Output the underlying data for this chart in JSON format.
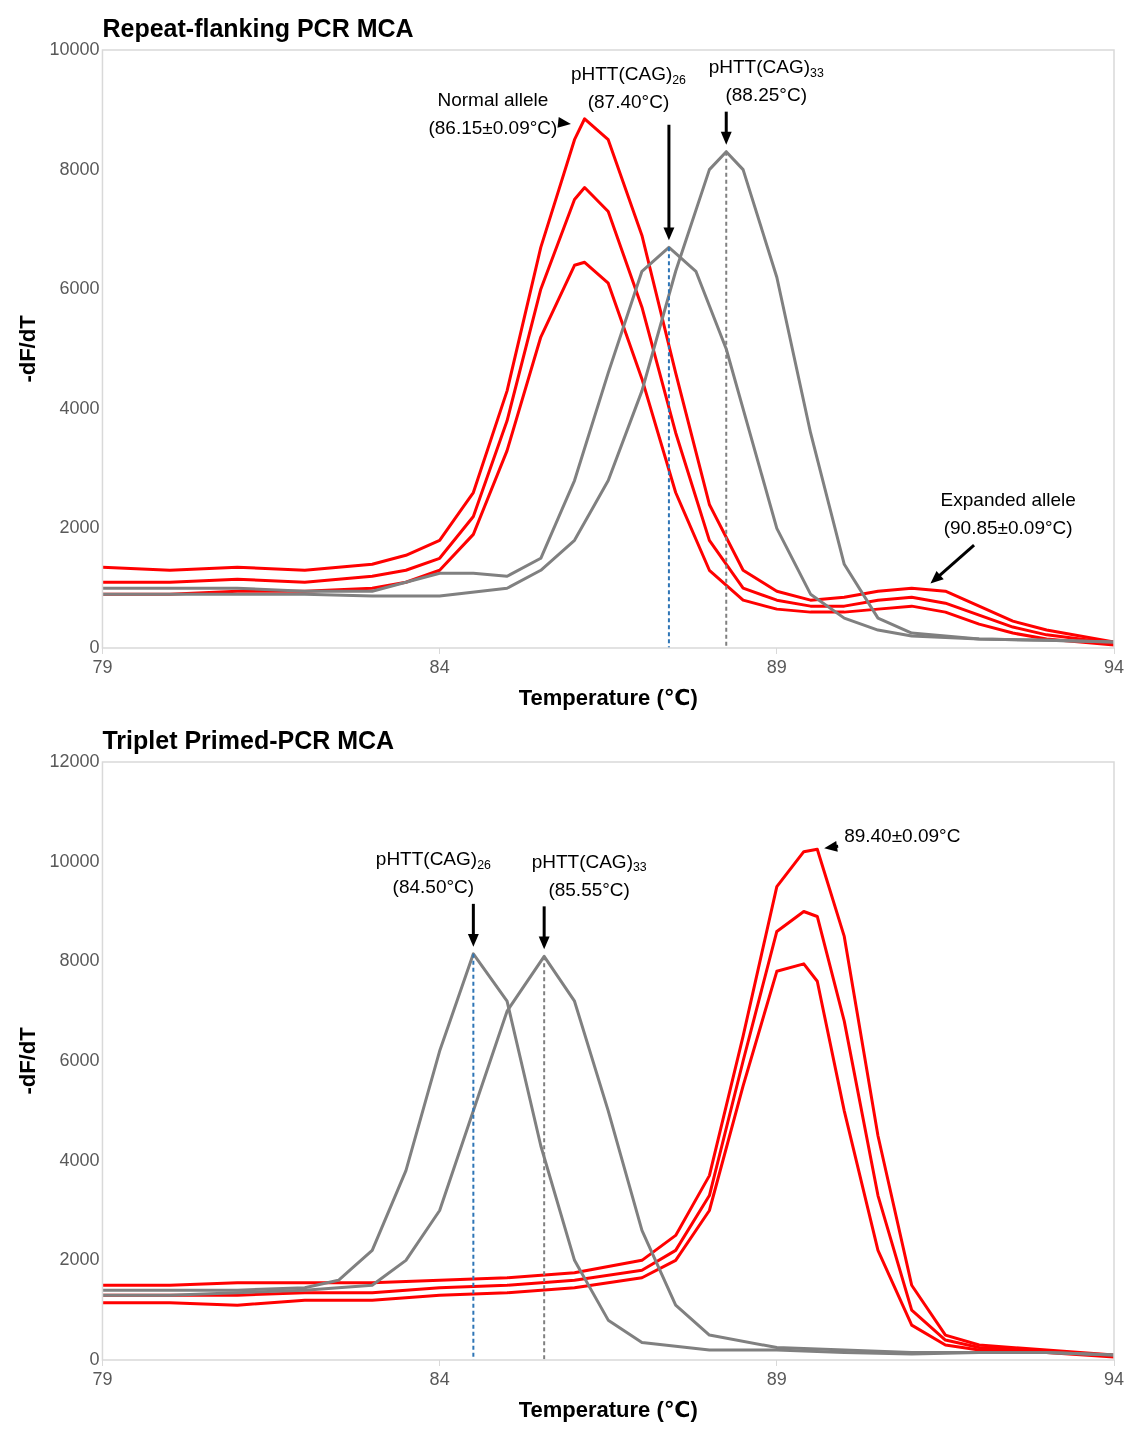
{
  "chart_data": [
    {
      "type": "line",
      "title": "Repeat-flanking PCR MCA",
      "xlabel": "Temperature (℃)",
      "ylabel": "-dF/dT",
      "xlim": [
        79,
        94
      ],
      "xticks": [
        79,
        84,
        89,
        94
      ],
      "ylim": [
        0,
        10000
      ],
      "yticks": [
        0,
        2000,
        4000,
        6000,
        8000,
        10000
      ],
      "marker": "none",
      "legend": false,
      "grid": false,
      "series": [
        {
          "color": "#ff0000",
          "x": [
            79,
            80,
            81,
            82,
            83,
            83.5,
            84,
            84.5,
            85,
            85.5,
            86,
            86.15,
            86.5,
            87,
            87.5,
            88,
            88.5,
            89,
            89.5,
            90,
            90.5,
            91,
            91.5,
            92,
            92.5,
            93,
            94
          ],
          "values": [
            1350,
            1300,
            1350,
            1300,
            1400,
            1550,
            1800,
            2600,
            4300,
            6700,
            8500,
            8850,
            8500,
            6900,
            4600,
            2400,
            1300,
            950,
            800,
            850,
            950,
            1000,
            950,
            700,
            450,
            300,
            100
          ]
        },
        {
          "color": "#ff0000",
          "x": [
            79,
            80,
            81,
            82,
            83,
            83.5,
            84,
            84.5,
            85,
            85.5,
            86,
            86.15,
            86.5,
            87,
            87.5,
            88,
            88.5,
            89,
            89.5,
            90,
            90.5,
            91,
            91.5,
            92,
            92.5,
            93,
            94
          ],
          "values": [
            1100,
            1100,
            1150,
            1100,
            1200,
            1300,
            1500,
            2200,
            3800,
            6000,
            7500,
            7700,
            7300,
            5700,
            3600,
            1800,
            1000,
            800,
            700,
            700,
            800,
            850,
            750,
            550,
            350,
            220,
            80
          ]
        },
        {
          "color": "#ff0000",
          "x": [
            79,
            80,
            81,
            82,
            83,
            83.5,
            84,
            84.5,
            85,
            85.5,
            86,
            86.15,
            86.5,
            87,
            87.5,
            88,
            88.5,
            89,
            89.5,
            90,
            90.5,
            91,
            91.5,
            92,
            92.5,
            93,
            94
          ],
          "values": [
            900,
            900,
            950,
            950,
            1000,
            1100,
            1300,
            1900,
            3300,
            5200,
            6400,
            6450,
            6100,
            4500,
            2600,
            1300,
            800,
            650,
            600,
            600,
            650,
            700,
            600,
            400,
            250,
            150,
            50
          ]
        },
        {
          "color": "#808080",
          "x": [
            79,
            80,
            81,
            82,
            83,
            84,
            84.5,
            85,
            85.5,
            86,
            86.5,
            87,
            87.4,
            87.8,
            88.25,
            88.5,
            89,
            89.5,
            90,
            90.5,
            91,
            92,
            93,
            94
          ],
          "values": [
            1000,
            1000,
            1000,
            950,
            950,
            1250,
            1250,
            1200,
            1500,
            2800,
            4600,
            6300,
            6700,
            6300,
            5000,
            4000,
            2000,
            900,
            500,
            300,
            200,
            150,
            130,
            100
          ]
        },
        {
          "color": "#808080",
          "x": [
            79,
            80,
            81,
            82,
            83,
            84,
            85,
            85.5,
            86,
            86.5,
            87,
            87.5,
            88,
            88.25,
            88.5,
            89,
            89.5,
            90,
            90.5,
            91,
            92,
            93,
            94
          ],
          "values": [
            900,
            900,
            900,
            900,
            870,
            870,
            1000,
            1300,
            1800,
            2800,
            4300,
            6300,
            8000,
            8300,
            8000,
            6200,
            3600,
            1400,
            500,
            250,
            150,
            130,
            100
          ]
        },
        {
          "type": "line",
          "color": "#2e75b6",
          "line_style": "dashed",
          "x": [
            87.4,
            87.4
          ],
          "values": [
            6700,
            0
          ]
        },
        {
          "type": "line",
          "color": "#808080",
          "line_style": "dashed",
          "x": [
            88.25,
            88.25
          ],
          "values": [
            8300,
            0
          ]
        }
      ],
      "annotations": [
        {
          "text": "Normal allele\n(86.15±0.09°C)",
          "x": 86.05,
          "y": 8750
        },
        "pHTT(CAG)$_{26}$\n(87.40°C)",
        {
          "text": "pHTT(CAG)$_{33}$\n(88.25°C)",
          "x": 88.25,
          "y": 8300
        },
        {
          "text": "Expanded allele\n(90.85±0.09°C)",
          "x": 91.2,
          "y": 1000
        }
      ]
    },
    {
      "type": "line",
      "title": "Triplet Primed-PCR MCA",
      "xlabel": "Temperature (℃)",
      "ylabel": "-dF/dT",
      "xlim": [
        79,
        94
      ],
      "xticks": [
        79,
        84,
        89,
        94
      ],
      "ylim": [
        0,
        12000
      ],
      "yticks": [
        0,
        2000,
        4000,
        6000,
        8000,
        10000,
        12000
      ],
      "marker": "none",
      "legend": false,
      "grid": false,
      "series": [
        {
          "color": "#ff0000",
          "x": [
            79,
            80,
            81,
            82,
            83,
            84,
            85,
            86,
            87,
            87.5,
            88,
            88.5,
            89,
            89.4,
            89.6,
            90,
            90.5,
            91,
            91.5,
            92,
            93,
            94
          ],
          "values": [
            1500,
            1500,
            1550,
            1550,
            1550,
            1600,
            1650,
            1750,
            2000,
            2500,
            3700,
            6500,
            9500,
            10200,
            10250,
            8500,
            4500,
            1500,
            500,
            300,
            200,
            100
          ]
        },
        {
          "color": "#ff0000",
          "x": [
            79,
            80,
            81,
            82,
            83,
            84,
            85,
            86,
            87,
            87.5,
            88,
            88.5,
            89,
            89.4,
            89.6,
            90,
            90.5,
            91,
            91.5,
            92,
            93,
            94
          ],
          "values": [
            1300,
            1300,
            1300,
            1350,
            1350,
            1450,
            1500,
            1600,
            1800,
            2200,
            3300,
            6000,
            8600,
            9000,
            8900,
            6800,
            3300,
            1000,
            400,
            250,
            170,
            80
          ]
        },
        {
          "color": "#ff0000",
          "x": [
            79,
            80,
            81,
            82,
            83,
            84,
            85,
            86,
            87,
            87.5,
            88,
            88.5,
            89,
            89.4,
            89.6,
            90,
            90.5,
            91,
            91.5,
            92,
            93,
            94
          ],
          "values": [
            1150,
            1150,
            1100,
            1200,
            1200,
            1300,
            1350,
            1450,
            1650,
            2000,
            3000,
            5500,
            7800,
            7950,
            7600,
            5000,
            2200,
            700,
            300,
            200,
            150,
            60
          ]
        },
        {
          "color": "#808080",
          "x": [
            79,
            80,
            81,
            82,
            82.5,
            83,
            83.5,
            84,
            84.5,
            85,
            85.5,
            86,
            86.5,
            87,
            88,
            89,
            90,
            91,
            92,
            93,
            94
          ],
          "values": [
            1400,
            1400,
            1400,
            1450,
            1600,
            2200,
            3800,
            6200,
            8150,
            7200,
            4300,
            2000,
            800,
            350,
            200,
            200,
            150,
            120,
            150,
            150,
            100
          ]
        },
        {
          "color": "#808080",
          "x": [
            79,
            80,
            81,
            82,
            83,
            83.5,
            84,
            84.5,
            85,
            85.55,
            86,
            86.5,
            87,
            87.5,
            88,
            89,
            90,
            91,
            92,
            93,
            94
          ],
          "values": [
            1300,
            1300,
            1350,
            1400,
            1500,
            2000,
            3000,
            5000,
            7000,
            8100,
            7200,
            5000,
            2600,
            1100,
            500,
            250,
            200,
            150,
            150,
            150,
            100
          ]
        },
        {
          "type": "line",
          "color": "#2e75b6",
          "line_style": "dashed",
          "x": [
            84.5,
            84.5
          ],
          "values": [
            8150,
            0
          ]
        },
        {
          "type": "line",
          "color": "#808080",
          "line_style": "dashed",
          "x": [
            85.55,
            85.55
          ],
          "values": [
            8100,
            0
          ]
        }
      ],
      "annotations": [
        {
          "text": "89.40±0.09°C",
          "x": 89.6,
          "y": 10250
        },
        {
          "text": "pHTT(CAG)$_{26}$\n(84.50°C)",
          "x": 84.5,
          "y": 8150
        },
        {
          "text": "pHTT(CAG)$_{33}$\n(85.55°C)",
          "x": 85.55,
          "y": 8100
        }
      ]
    }
  ]
}
